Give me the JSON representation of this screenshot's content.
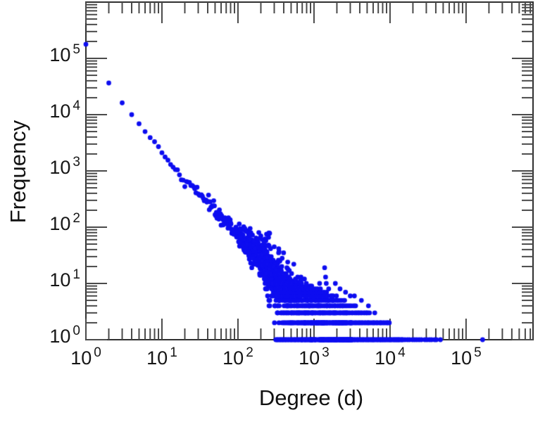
{
  "figure": {
    "background": "#ffffff",
    "frame_color": "#303030",
    "tick_color": "#4a4a4a",
    "text_color": "#111111"
  },
  "chart_data": {
    "type": "scatter",
    "title": "",
    "xlabel": "Degree (d)",
    "ylabel": "Frequency",
    "x_scale": "log",
    "y_scale": "log",
    "xlim": [
      1,
      760000
    ],
    "ylim": [
      1,
      1000000
    ],
    "tick_base": "10",
    "x_tick_exponents": [
      0,
      1,
      2,
      3,
      4,
      5
    ],
    "y_tick_exponents": [
      0,
      1,
      2,
      3,
      4,
      5
    ],
    "grid": false,
    "legend": null,
    "marker": {
      "color": "#0d0df0",
      "radius": 3.4
    },
    "points_low_degree": [
      [
        1,
        178000
      ],
      [
        2,
        36500
      ],
      [
        3,
        16200
      ],
      [
        4,
        10000
      ],
      [
        5,
        6900
      ],
      [
        6,
        5000
      ],
      [
        7,
        3900
      ],
      [
        8,
        3300
      ],
      [
        9,
        2700
      ],
      [
        10,
        2100
      ]
    ],
    "ridge_anchors_log10": [
      [
        0,
        5.25
      ],
      [
        0.301,
        4.562
      ],
      [
        0.477,
        4.21
      ],
      [
        0.602,
        4.0
      ],
      [
        0.699,
        3.84
      ],
      [
        1.0,
        3.33
      ],
      [
        1.3,
        2.82
      ],
      [
        1.477,
        2.62
      ],
      [
        1.7,
        2.3
      ],
      [
        2.0,
        1.86
      ],
      [
        2.3,
        1.45
      ],
      [
        2.5,
        1.05
      ],
      [
        2.8,
        0.62
      ],
      [
        3.0,
        0.35
      ],
      [
        3.3,
        0.1
      ],
      [
        3.7,
        -0.02
      ],
      [
        4.2,
        -0.04
      ]
    ],
    "frequency_rows": [
      {
        "freq": 1,
        "d_min": 310,
        "d_max": 15000,
        "n": 130
      },
      {
        "freq": 1,
        "d_min": 15000,
        "d_max": 43000,
        "n": 14
      },
      {
        "freq": 2,
        "d_min": 390,
        "d_max": 10000,
        "n": 100
      },
      {
        "freq": 3,
        "d_min": 360,
        "d_max": 5500,
        "n": 75
      },
      {
        "freq": 4,
        "d_min": 400,
        "d_max": 3600,
        "n": 55
      },
      {
        "freq": 5,
        "d_min": 380,
        "d_max": 2600,
        "n": 42
      },
      {
        "freq": 6,
        "d_min": 360,
        "d_max": 2000,
        "n": 30
      },
      {
        "freq": 7,
        "d_min": 340,
        "d_max": 1500,
        "n": 22
      },
      {
        "freq": 8,
        "d_min": 330,
        "d_max": 1250,
        "n": 16
      },
      {
        "freq": 9,
        "d_min": 320,
        "d_max": 1000,
        "n": 12
      },
      {
        "freq": 10,
        "d_min": 310,
        "d_max": 850,
        "n": 9
      },
      {
        "freq": 11,
        "d_min": 330,
        "d_max": 700,
        "n": 6
      },
      {
        "freq": 12,
        "d_min": 340,
        "d_max": 600,
        "n": 5
      },
      {
        "freq": 13,
        "d_min": 300,
        "d_max": 520,
        "n": 4
      },
      {
        "freq": 14,
        "d_min": 310,
        "d_max": 460,
        "n": 3
      },
      {
        "freq": 15,
        "d_min": 300,
        "d_max": 420,
        "n": 3
      },
      {
        "freq": 17,
        "d_min": 310,
        "d_max": 380,
        "n": 2
      }
    ],
    "sparse_freq1_degrees": [
      46000,
      165000
    ],
    "outlier_points": [
      [
        1380,
        19
      ],
      [
        1420,
        13
      ],
      [
        1450,
        10
      ],
      [
        1560,
        8
      ],
      [
        2200,
        8
      ],
      [
        2600,
        7
      ],
      [
        3000,
        6
      ],
      [
        3400,
        6
      ],
      [
        4200,
        5
      ],
      [
        5200,
        4
      ],
      [
        6300,
        3
      ]
    ],
    "generator": {
      "seed": 42,
      "ridge_d_range": [
        11,
        360
      ],
      "quantize_below": 40,
      "ridge_sigma_profile": [
        {
          "t_max": 1.2,
          "sigma": 0.012
        },
        {
          "t_max": 1.6,
          "sigma": 0.03
        },
        {
          "t_max": 2.0,
          "sigma": 0.07
        },
        {
          "t_max": 9.0,
          "sigma_base": 0.07,
          "sigma_slope": 0.45,
          "sigma_cap": 0.32
        }
      ],
      "clouds": [
        {
          "n": 120,
          "t_range": [
            2.0,
            2.4
          ],
          "sigma": 0.12
        },
        {
          "n": 520,
          "t_range": [
            2.3,
            3.5
          ],
          "sigma": 0.26
        }
      ]
    }
  }
}
